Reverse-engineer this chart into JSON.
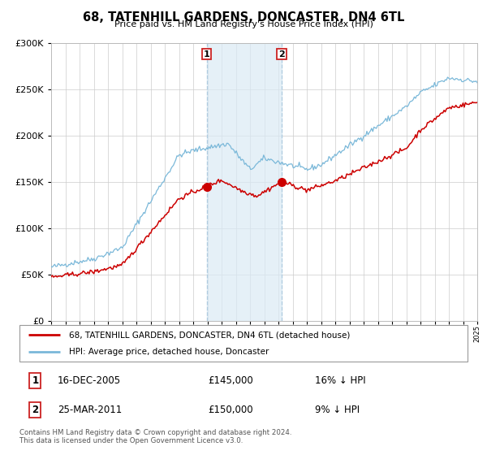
{
  "title": "68, TATENHILL GARDENS, DONCASTER, DN4 6TL",
  "subtitle": "Price paid vs. HM Land Registry's House Price Index (HPI)",
  "legend_line1": "68, TATENHILL GARDENS, DONCASTER, DN4 6TL (detached house)",
  "legend_line2": "HPI: Average price, detached house, Doncaster",
  "transaction1_date": "16-DEC-2005",
  "transaction1_price": 145000,
  "transaction1_hpi": "16% ↓ HPI",
  "transaction2_date": "25-MAR-2011",
  "transaction2_price": 150000,
  "transaction2_hpi": "9% ↓ HPI",
  "footer": "Contains HM Land Registry data © Crown copyright and database right 2024.\nThis data is licensed under the Open Government Licence v3.0.",
  "hpi_color": "#7ab8d9",
  "price_color": "#cc0000",
  "marker_color": "#cc0000",
  "shade_color": "#daeaf5",
  "shade_alpha": 0.7,
  "grid_color": "#cccccc",
  "ymin": 0,
  "ymax": 300000,
  "xstart_year": 1995,
  "xend_year": 2025,
  "transaction1_x": 2005.96,
  "transaction2_x": 2011.23,
  "yticks": [
    0,
    50000,
    100000,
    150000,
    200000,
    250000,
    300000
  ]
}
